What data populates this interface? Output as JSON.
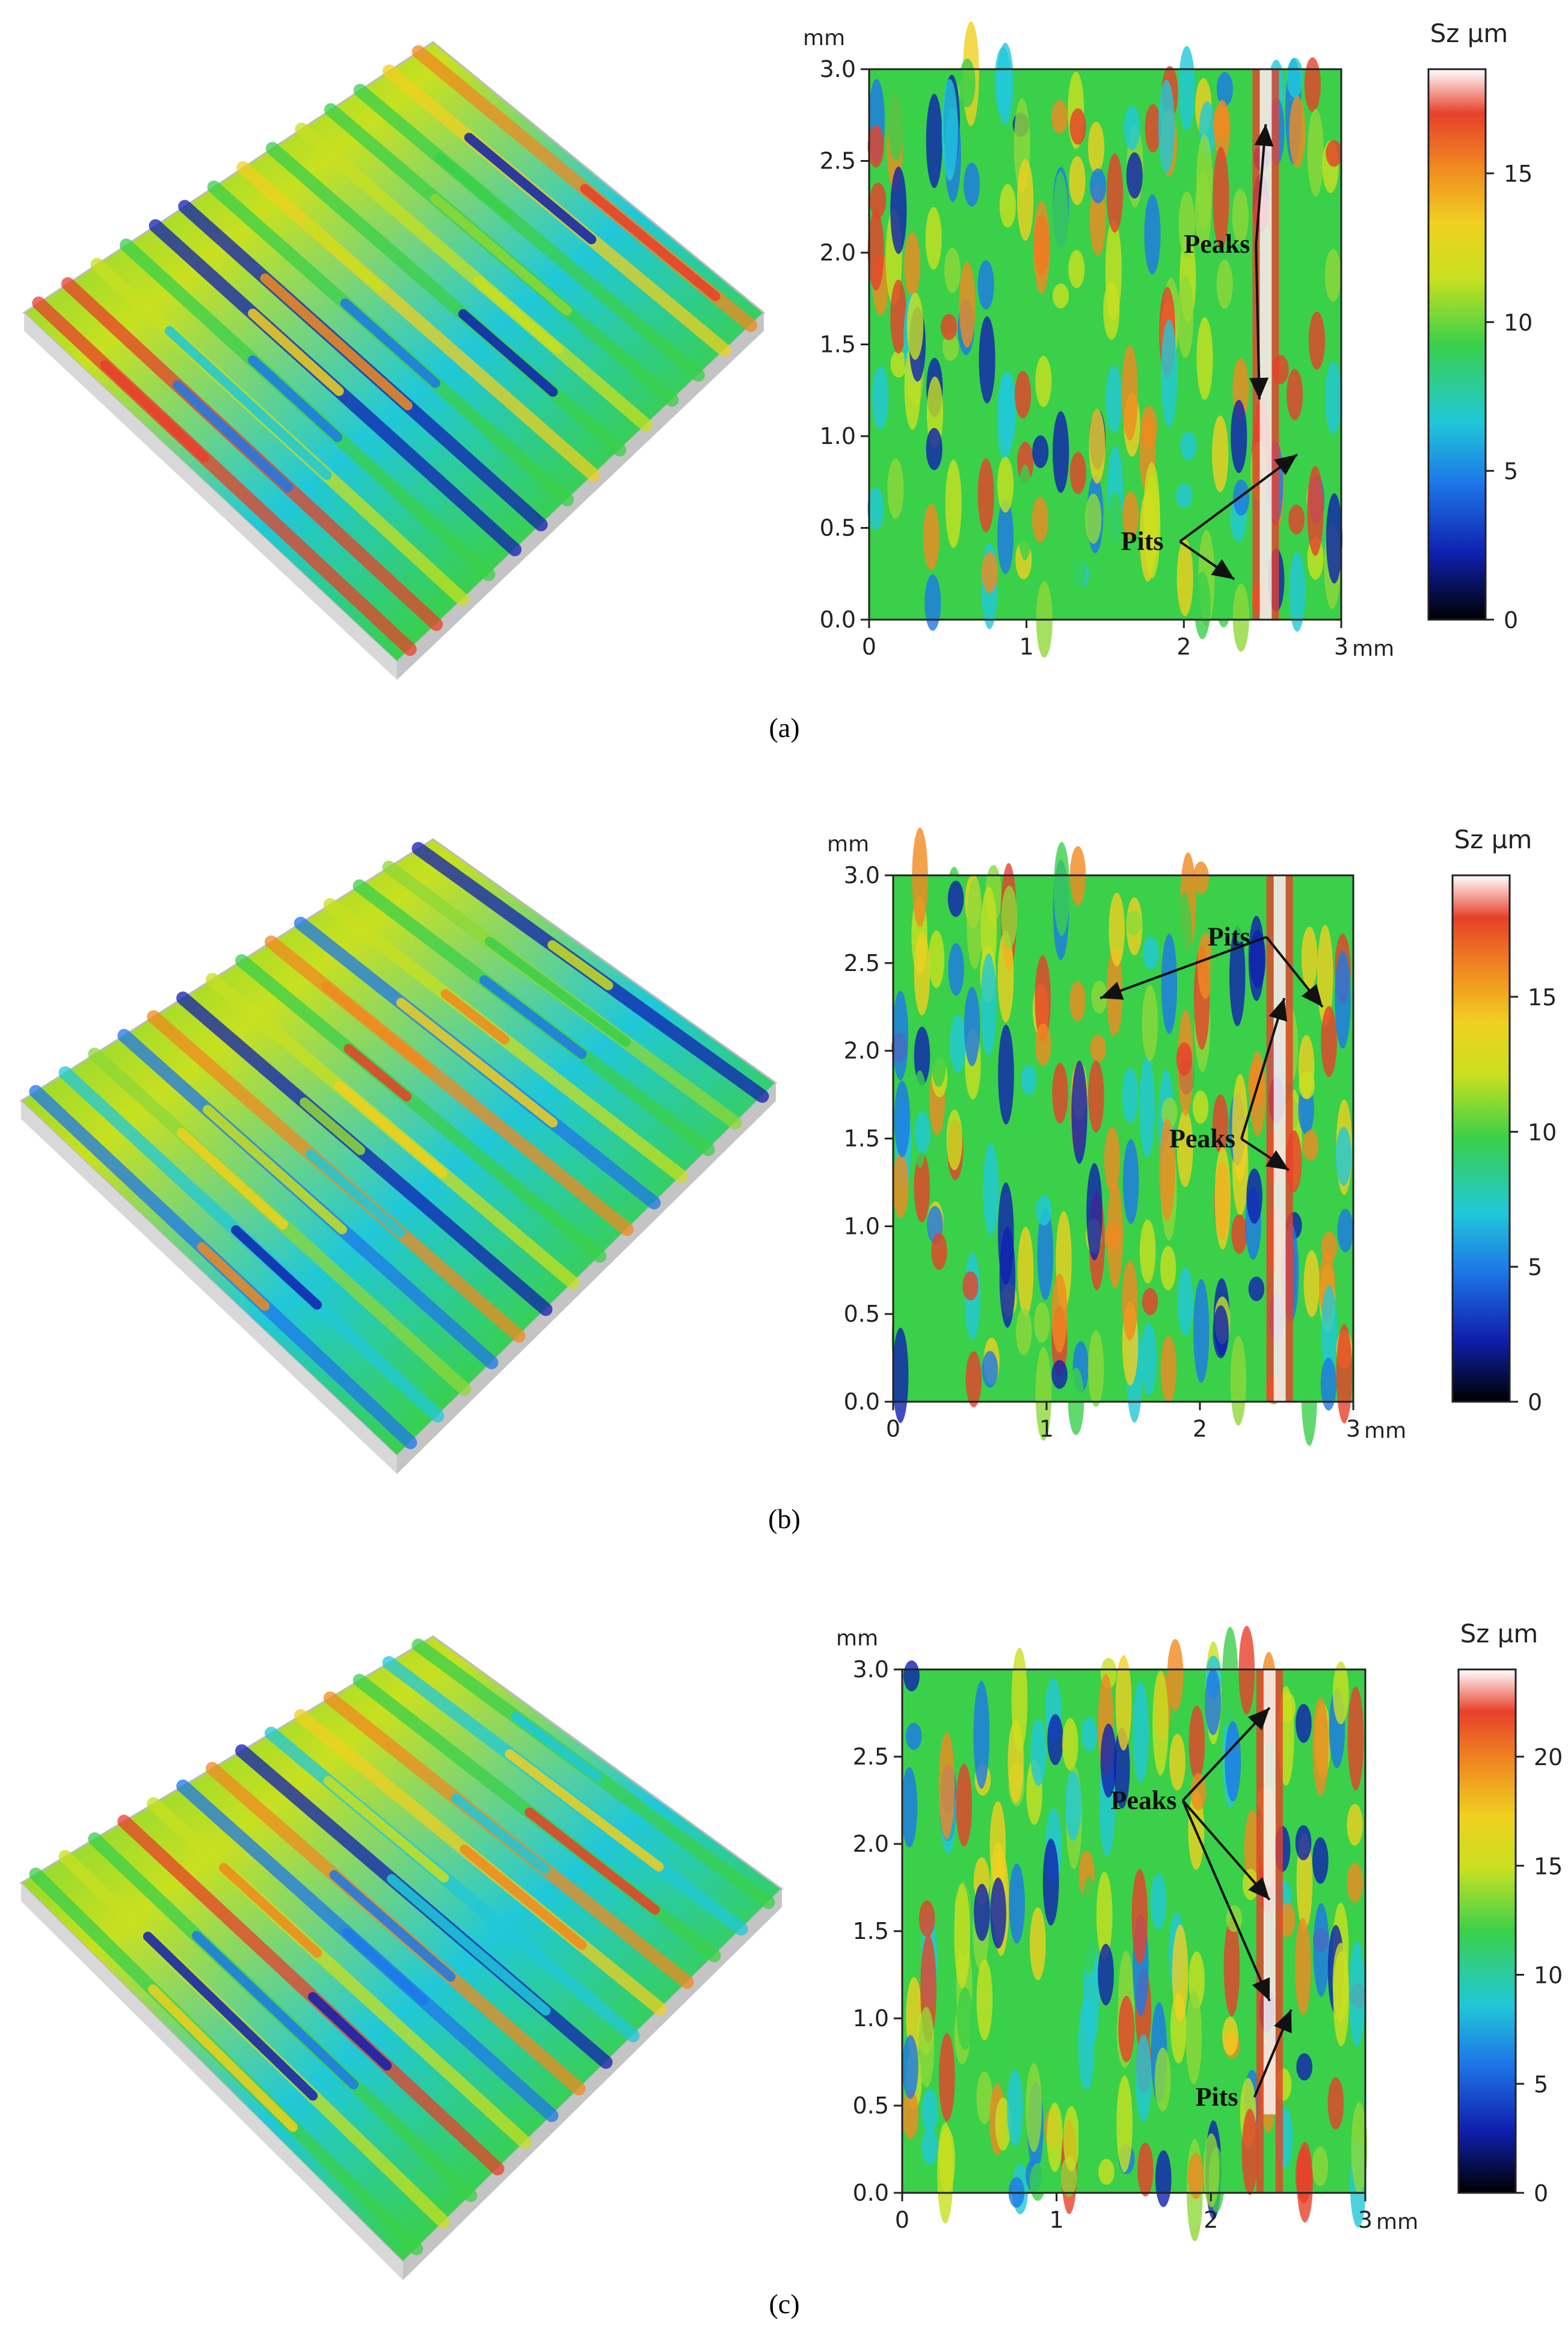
{
  "chart_data": [
    {
      "type": "heatmap",
      "caption": "(a)",
      "x_unit": "mm",
      "y_unit": "mm",
      "xlim": [
        0,
        3
      ],
      "ylim": [
        0,
        3
      ],
      "x_ticks": [
        "0",
        "1",
        "2",
        "3"
      ],
      "y_ticks": [
        "0.0",
        "0.5",
        "1.0",
        "1.5",
        "2.0",
        "2.5",
        "3.0"
      ],
      "colorbar": {
        "title": "Sz µm",
        "range": [
          0,
          18.5
        ],
        "ticks": [
          0,
          5,
          10,
          15
        ]
      },
      "annotations": [
        {
          "text": "Peaks",
          "label_at": [
            2.0,
            2.0
          ],
          "targets": [
            [
              2.52,
              2.7
            ],
            [
              2.48,
              1.2
            ]
          ]
        },
        {
          "text": "Pits",
          "label_at": [
            1.6,
            0.38
          ],
          "targets": [
            [
              2.72,
              0.9
            ],
            [
              2.32,
              0.22
            ]
          ]
        }
      ],
      "colors": {
        "low": "#1a1aa0",
        "mid": "#3ad04a",
        "high": "#e8402a",
        "max": "#fff4f4"
      }
    },
    {
      "type": "heatmap",
      "caption": "(b)",
      "x_unit": "mm",
      "y_unit": "mm",
      "xlim": [
        0,
        3
      ],
      "ylim": [
        0,
        3
      ],
      "x_ticks": [
        "0",
        "1",
        "2",
        "3"
      ],
      "y_ticks": [
        "0.0",
        "0.5",
        "1.0",
        "1.5",
        "2.0",
        "2.5",
        "3.0"
      ],
      "colorbar": {
        "title": "Sz µm",
        "range": [
          0,
          19.5
        ],
        "ticks": [
          0,
          5,
          10,
          15
        ]
      },
      "annotations": [
        {
          "text": "Pits",
          "label_at": [
            2.05,
            2.6
          ],
          "targets": [
            [
              1.35,
              2.3
            ],
            [
              2.8,
              2.25
            ]
          ]
        },
        {
          "text": "Peaks",
          "label_at": [
            1.8,
            1.45
          ],
          "targets": [
            [
              2.55,
              2.3
            ],
            [
              2.58,
              1.32
            ]
          ]
        }
      ],
      "colors": {
        "low": "#1a1aa0",
        "mid": "#3ad04a",
        "high": "#e8402a",
        "max": "#fff4f4"
      }
    },
    {
      "type": "heatmap",
      "caption": "(c)",
      "x_unit": "mm",
      "y_unit": "mm",
      "xlim": [
        0,
        3
      ],
      "ylim": [
        0,
        3
      ],
      "x_ticks": [
        "0",
        "1",
        "2",
        "3"
      ],
      "y_ticks": [
        "0.0",
        "0.5",
        "1.0",
        "1.5",
        "2.0",
        "2.5",
        "3.0"
      ],
      "colorbar": {
        "title": "Sz µm",
        "range": [
          0,
          24
        ],
        "ticks": [
          0,
          5,
          10,
          15,
          20
        ]
      },
      "annotations": [
        {
          "text": "Peaks",
          "label_at": [
            1.35,
            2.2
          ],
          "targets": [
            [
              2.38,
              2.78
            ],
            [
              2.38,
              1.68
            ],
            [
              2.38,
              1.1
            ]
          ]
        },
        {
          "text": "Pits",
          "label_at": [
            1.9,
            0.5
          ],
          "targets": [
            [
              2.52,
              1.05
            ]
          ]
        }
      ],
      "colors": {
        "low": "#1a1aa0",
        "mid": "#3ad04a",
        "high": "#e8402a",
        "max": "#fff4f4"
      }
    }
  ]
}
